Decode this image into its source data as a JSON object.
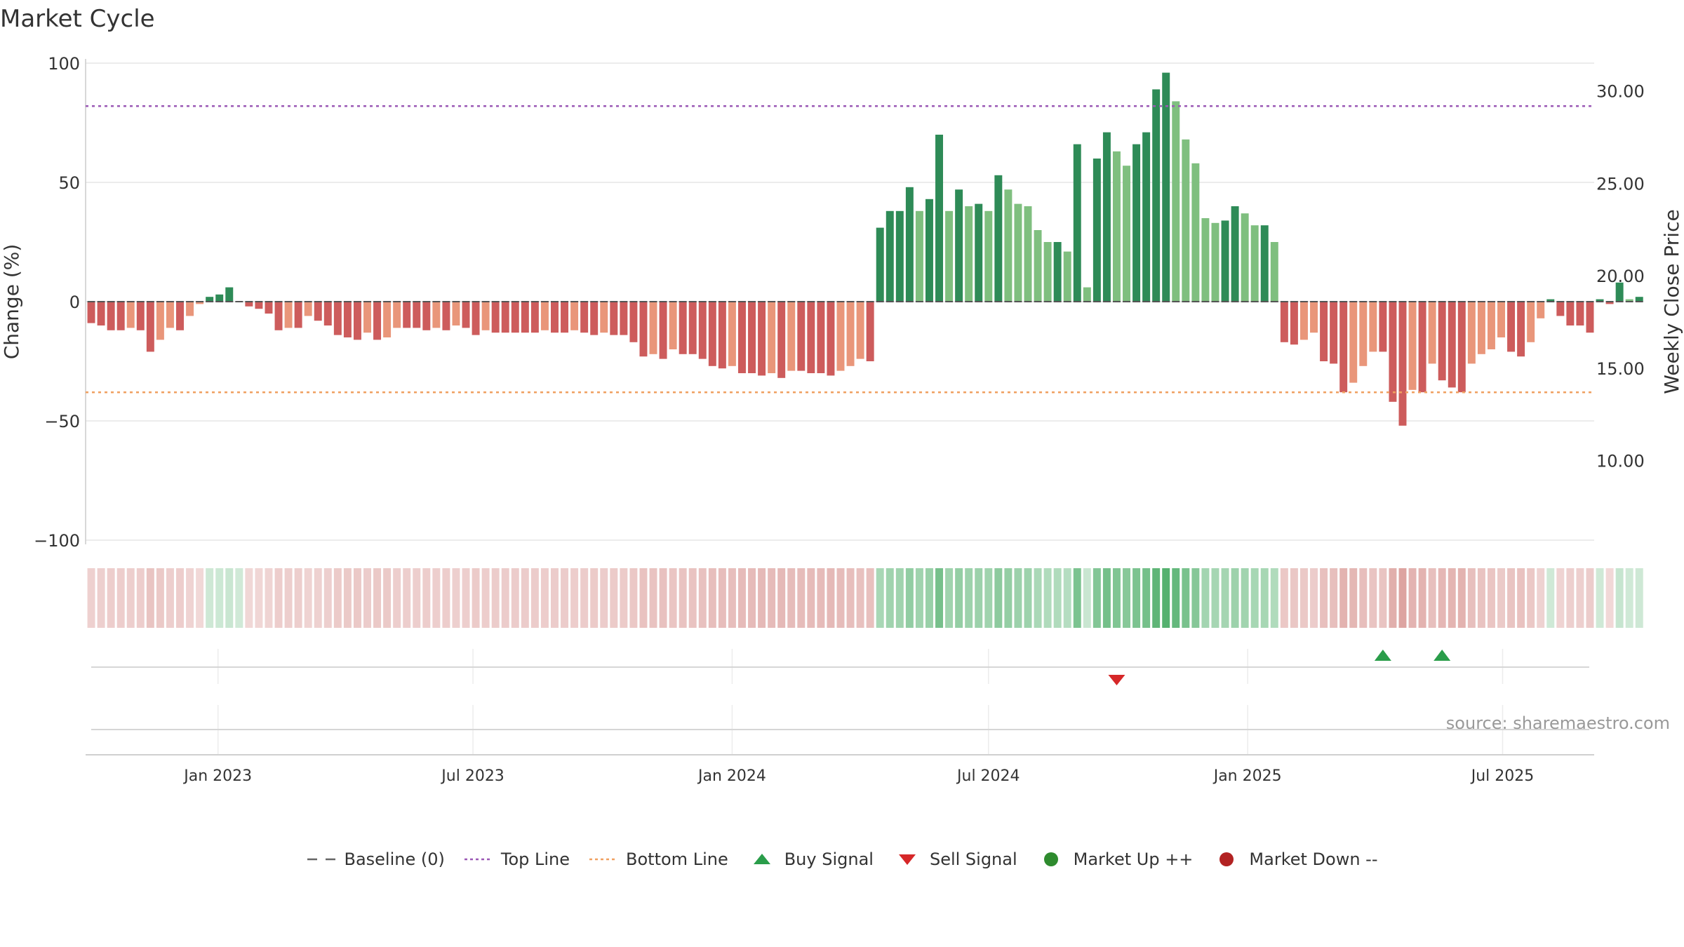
{
  "chart_data": {
    "type": "bar",
    "title": "Market Cycle",
    "ylabel_left": "Change (%)",
    "ylabel_right": "Weekly Close Price",
    "ylim_left": [
      -100,
      100
    ],
    "yticks_left": [
      "100",
      "50",
      "0",
      "−50",
      "−100"
    ],
    "ylim_right": [
      5.7,
      31.5
    ],
    "yticks_right": [
      "30.00",
      "25.00",
      "20.00",
      "15.00",
      "10.00"
    ],
    "xticks": [
      {
        "label": "Jan 2023",
        "date": "2023-01-01"
      },
      {
        "label": "Jul 2023",
        "date": "2023-07-01"
      },
      {
        "label": "Jan 2024",
        "date": "2024-01-01"
      },
      {
        "label": "Jul 2024",
        "date": "2024-07-01"
      },
      {
        "label": "Jan 2025",
        "date": "2025-01-01"
      },
      {
        "label": "Jul 2025",
        "date": "2025-07-01"
      }
    ],
    "x_start": "2022-09-29",
    "x_end": "2025-09-04",
    "week_start": "2022-10-03",
    "values": [
      -9,
      -10,
      -12,
      -12,
      -11,
      -12,
      -21,
      -16,
      -11,
      -12,
      -6,
      -1,
      2,
      3,
      6,
      0,
      -2,
      -3,
      -5,
      -12,
      -11,
      -11,
      -6,
      -8,
      -10,
      -14,
      -15,
      -16,
      -13,
      -16,
      -15,
      -11,
      -11,
      -11,
      -12,
      -11,
      -12,
      -10,
      -11,
      -14,
      -12,
      -13,
      -13,
      -13,
      -13,
      -13,
      -12,
      -13,
      -13,
      -12,
      -13,
      -14,
      -13,
      -14,
      -14,
      -17,
      -23,
      -22,
      -24,
      -20,
      -22,
      -22,
      -24,
      -27,
      -28,
      -27,
      -30,
      -30,
      -31,
      -30,
      -32,
      -29,
      -29,
      -30,
      -30,
      -31,
      -29,
      -27,
      -24,
      -25,
      31,
      38,
      38,
      48,
      38,
      43,
      70,
      38,
      47,
      40,
      41,
      38,
      53,
      47,
      41,
      40,
      30,
      25,
      25,
      21,
      66,
      6,
      60,
      71,
      63,
      57,
      66,
      71,
      89,
      96,
      84,
      68,
      58,
      35,
      33,
      34,
      40,
      37,
      32,
      32,
      25,
      -17,
      -18,
      -16,
      -13,
      -25,
      -26,
      -38,
      -34,
      -27,
      -21,
      -21,
      -42,
      -52,
      -37,
      -38,
      -26,
      -33,
      -36,
      -38,
      -26,
      -22,
      -20,
      -15,
      -21,
      -23,
      -17,
      -7,
      1,
      -6,
      -10,
      -10,
      -13,
      1,
      -1,
      8,
      1,
      2
    ],
    "bar_colors": {
      "up_strong": "#2e8b57",
      "up_weak": "#7fbf7f",
      "down_strong": "#cd5c5c",
      "down_weak": "#e9967a"
    },
    "heat_colors": {
      "up": "#2a9d4a",
      "down": "#c0544f"
    },
    "top_line": 82,
    "bottom_line": -38,
    "baseline": 0,
    "colors": {
      "top_line": "#9b59b6",
      "bottom_line": "#f0a060",
      "baseline": "#555555",
      "buy": "#2a9d4a",
      "sell": "#d62728",
      "market_up": "#2e8b2e",
      "market_down": "#b22222"
    },
    "buy_signals": [
      "2025-04-07",
      "2025-05-19"
    ],
    "sell_signals": [
      "2024-09-30"
    ],
    "source": "source: sharemaestro.com",
    "legend": [
      {
        "label": "Baseline (0)",
        "symbol": "dash-line",
        "color": "#666666"
      },
      {
        "label": "Top Line",
        "symbol": "dot-line",
        "color": "#9b59b6"
      },
      {
        "label": "Bottom Line",
        "symbol": "dot-line",
        "color": "#f0a060"
      },
      {
        "label": "Buy Signal",
        "symbol": "triangle-up",
        "color": "#2a9d4a"
      },
      {
        "label": "Sell Signal",
        "symbol": "triangle-down",
        "color": "#d62728"
      },
      {
        "label": "Market Up ++",
        "symbol": "circle",
        "color": "#2e8b2e"
      },
      {
        "label": "Market Down --",
        "symbol": "circle",
        "color": "#b22222"
      }
    ]
  }
}
